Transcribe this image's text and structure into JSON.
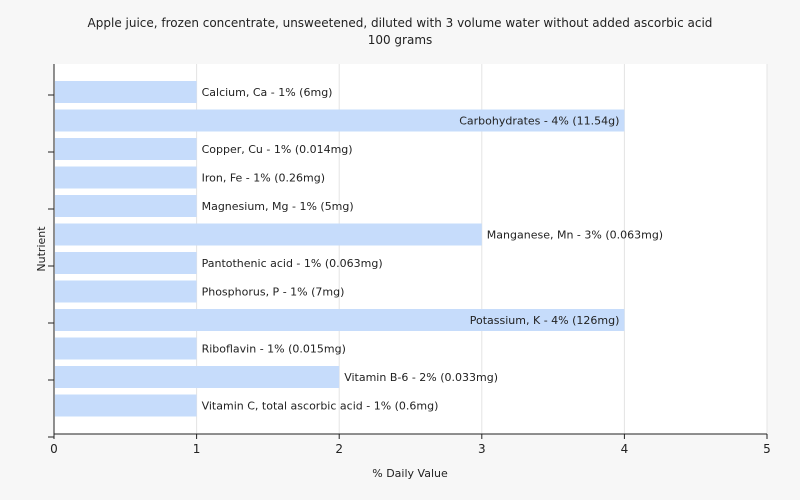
{
  "chart_data": {
    "type": "bar",
    "orientation": "horizontal",
    "title": "Apple juice, frozen concentrate, unsweetened, diluted with 3 volume water without added ascorbic acid",
    "subtitle": "100 grams",
    "xlabel": "% Daily Value",
    "ylabel": "Nutrient",
    "xlim": [
      0,
      5
    ],
    "xticks": [
      0,
      1,
      2,
      3,
      4,
      5
    ],
    "grid": true,
    "bar_color": "#c6dcfb",
    "categories": [
      "Calcium, Ca",
      "Carbohydrates",
      "Copper, Cu",
      "Iron, Fe",
      "Magnesium, Mg",
      "Manganese, Mn",
      "Pantothenic acid",
      "Phosphorus, P",
      "Potassium, K",
      "Riboflavin",
      "Vitamin B-6",
      "Vitamin C, total ascorbic acid"
    ],
    "values": [
      1,
      4,
      1,
      1,
      1,
      3,
      1,
      1,
      4,
      1,
      2,
      1
    ],
    "data_labels": [
      "Calcium, Ca - 1% (6mg)",
      "Carbohydrates - 4% (11.54g)",
      "Copper, Cu - 1% (0.014mg)",
      "Iron, Fe - 1% (0.26mg)",
      "Magnesium, Mg - 1% (5mg)",
      "Manganese, Mn - 3% (0.063mg)",
      "Pantothenic acid - 1% (0.063mg)",
      "Phosphorus, P - 1% (7mg)",
      "Potassium, K - 4% (126mg)",
      "Riboflavin - 1% (0.015mg)",
      "Vitamin B-6 - 2% (0.033mg)",
      "Vitamin C, total ascorbic acid - 1% (0.6mg)"
    ]
  }
}
